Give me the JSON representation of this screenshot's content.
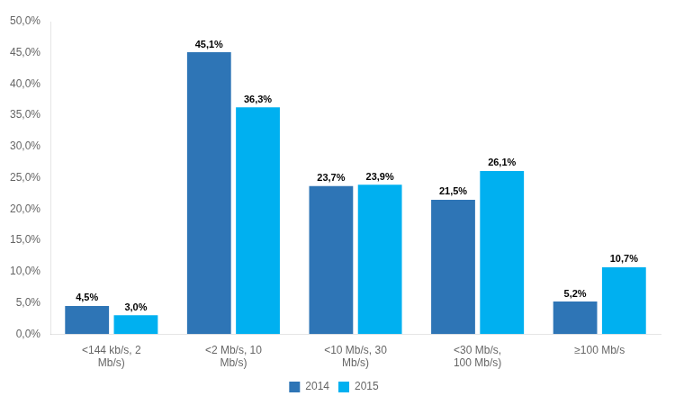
{
  "chart_data": {
    "type": "bar",
    "categories": [
      "<144 kb/s, 2\nMb/s)",
      "<2 Mb/s, 10\nMb/s)",
      "<10 Mb/s, 30\nMb/s)",
      "<30 Mb/s,\n100 Mb/s)",
      "≥100 Mb/s"
    ],
    "series": [
      {
        "name": "2014",
        "color": "#2E75B6",
        "values": [
          4.5,
          45.1,
          23.7,
          21.5,
          5.2
        ],
        "value_labels": [
          "4,5%",
          "45,1%",
          "23,7%",
          "21,5%",
          "5,2%"
        ]
      },
      {
        "name": "2015",
        "color": "#00B0F0",
        "values": [
          3.0,
          36.3,
          23.9,
          26.1,
          10.7
        ],
        "value_labels": [
          "3,0%",
          "36,3%",
          "23,9%",
          "26,1%",
          "10,7%"
        ]
      }
    ],
    "ylim": [
      0,
      50
    ],
    "yticks": [
      {
        "value": 0,
        "label": "0,0%"
      },
      {
        "value": 5,
        "label": "5,0%"
      },
      {
        "value": 10,
        "label": "10,0%"
      },
      {
        "value": 15,
        "label": "15,0%"
      },
      {
        "value": 20,
        "label": "20,0%"
      },
      {
        "value": 25,
        "label": "25,0%"
      },
      {
        "value": 30,
        "label": "30,0%"
      },
      {
        "value": 35,
        "label": "35,0%"
      },
      {
        "value": 40,
        "label": "40,0%"
      },
      {
        "value": 45,
        "label": "45,0%"
      },
      {
        "value": 50,
        "label": "50,0%"
      }
    ],
    "grid": false,
    "legend": "bottom",
    "data_labels": true
  }
}
